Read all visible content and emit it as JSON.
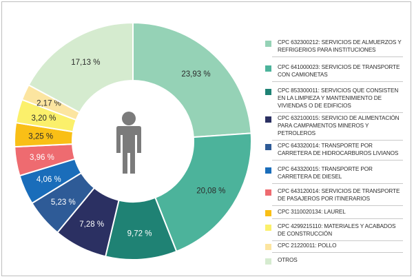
{
  "chart_data": {
    "type": "pie",
    "variant": "donut",
    "title": "",
    "center_icon": "person-icon",
    "series": [
      {
        "label": "CPC 632300212: SERVICIOS DE ALMUERZOS Y REFRIGERIOS PARA INSTITUCIONES",
        "value": 23.93,
        "display": "23,93 %",
        "color": "#95d2b6"
      },
      {
        "label": "CPC 641000023: SERVICIOS DE TRANSPORTE CON CAMIONETAS",
        "value": 20.08,
        "display": "20,08 %",
        "color": "#4cb39b"
      },
      {
        "label": "CPC 853300011: SERVICIOS QUE CONSISTEN EN LA LIMPIEZA Y MANTENIMIENTO DE VIVIENDAS O DE EDIFICIOS",
        "value": 9.72,
        "display": "9,72 %",
        "color": "#1f8274"
      },
      {
        "label": "CPC 632100015: SERVICIO DE ALIMENTACIÓN PARA CAMPAMENTOS MINEROS Y PETROLEROS",
        "value": 7.28,
        "display": "7,28 %",
        "color": "#2b3062"
      },
      {
        "label": "CPC 643320014: TRANSPORTE POR CARRETERA DE HIDROCARBUROS LIVIANOS",
        "value": 5.23,
        "display": "5,23 %",
        "color": "#2e5b97"
      },
      {
        "label": "CPC 643320015: TRANSPORTE POR CARRETERA DE DIESEL",
        "value": 4.06,
        "display": "4,06 %",
        "color": "#1a6dba"
      },
      {
        "label": "CPC 643120014: SERVICIOS DE TRANSPORTE DE PASAJEROS POR ITINERARIOS",
        "value": 3.96,
        "display": "3,96 %",
        "color": "#ee6b70"
      },
      {
        "label": "CPC 3110020134: LAUREL",
        "value": 3.25,
        "display": "3,25 %",
        "color": "#f9bf16"
      },
      {
        "label": "CPC 4299215110: MATERIALES Y ACABADOS DE CONSTRUCCIÓN",
        "value": 3.2,
        "display": "3,20 %",
        "color": "#fbf06b"
      },
      {
        "label": "CPC 21220011: POLLO",
        "value": 2.17,
        "display": "2,17 %",
        "color": "#fce5a0"
      },
      {
        "label": "OTROS",
        "value": 17.13,
        "display": "17,13 %",
        "color": "#d5ebcf"
      }
    ],
    "legend_position": "right"
  }
}
